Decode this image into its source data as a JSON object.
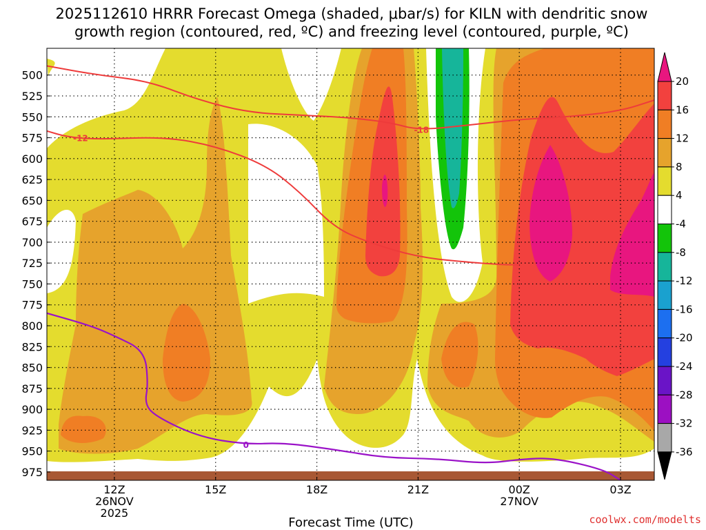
{
  "chart_data": {
    "type": "heatmap",
    "title_line1": "2025112610 HRRR Forecast Omega (shaded, μbar/s) for KILN with dendritic snow",
    "title_line2": "growth region (contoured, red, ºC) and freezing level (contoured, purple, ºC)",
    "xlabel": "Forecast Time (UTC)",
    "credit": "coolwx.com/modelts",
    "y_ticks": [
      500,
      525,
      550,
      575,
      600,
      625,
      650,
      675,
      700,
      725,
      750,
      775,
      800,
      825,
      850,
      875,
      900,
      925,
      950,
      975
    ],
    "y_tick_labels": [
      "500",
      "525",
      "550",
      "575",
      "600",
      "625",
      "650",
      "675",
      "700",
      "725",
      "750",
      "775",
      "800",
      "825",
      "850",
      "875",
      "900",
      "925",
      "950",
      "975"
    ],
    "x_ticks": [
      {
        "hour": 2,
        "line1": "12Z",
        "line2": "26NOV",
        "line3": "2025"
      },
      {
        "hour": 5,
        "line1": "15Z",
        "line2": "",
        "line3": ""
      },
      {
        "hour": 8,
        "line1": "18Z",
        "line2": "",
        "line3": ""
      },
      {
        "hour": 11,
        "line1": "21Z",
        "line2": "",
        "line3": ""
      },
      {
        "hour": 14,
        "line1": "00Z",
        "line2": "27NOV",
        "line3": ""
      },
      {
        "hour": 17,
        "line1": "03Z",
        "line2": "",
        "line3": ""
      }
    ],
    "x_range_hours": [
      0,
      18
    ],
    "y_range_hpa": [
      468,
      985
    ],
    "colorbar": {
      "labels": [
        "20",
        "16",
        "12",
        "8",
        "4",
        "-4",
        "-8",
        "-12",
        "-16",
        "-20",
        "-24",
        "-28",
        "-32",
        "-36"
      ],
      "colors": [
        "#e8167f",
        "#f2413e",
        "#f07e24",
        "#e6a32c",
        "#e4dc2e",
        "#ffffff",
        "#13c40a",
        "#16b59a",
        "#1aa1cf",
        "#1c6ff0",
        "#2440e0",
        "#6a14c7",
        "#9c10c2",
        "#a8a8a8",
        "#000000"
      ]
    },
    "shading_colors": {
      "c4": "#e4dc2e",
      "c8": "#e6a32c",
      "c12": "#f07e24",
      "c16": "#f2413e",
      "c20": "#e8167f",
      "cm4": "#13c40a",
      "cm8": "#16b59a",
      "ground": "#a85834"
    },
    "omega_features": [
      {
        "level": 4,
        "cx": 10.1,
        "cy": 725,
        "rx": 2.1,
        "ry": 260
      },
      {
        "level": 8,
        "cx": 9.9,
        "cy": 740,
        "rx": 1.5,
        "ry": 220
      },
      {
        "level": 12,
        "cx": 9.8,
        "cy": 620,
        "rx": 0.95,
        "ry": 140
      },
      {
        "level": 16,
        "cx": 9.9,
        "cy": 620,
        "rx": 0.45,
        "ry": 90
      },
      {
        "level": 20,
        "cx": 10.0,
        "cy": 620,
        "rx": 0.08,
        "ry": 28
      },
      {
        "level": 16,
        "cx": 3.9,
        "cy": 810,
        "rx": 0.33,
        "ry": 40
      },
      {
        "level": 12,
        "cx": 3.9,
        "cy": 810,
        "rx": 0.65,
        "ry": 70
      },
      {
        "level": -4,
        "cx": 11.8,
        "cy": 560,
        "rx": 0.7,
        "ry": 140
      },
      {
        "level": -8,
        "cx": 11.8,
        "cy": 560,
        "rx": 0.32,
        "ry": 120
      }
    ],
    "dgz_contours": [
      {
        "label": "-12",
        "label_hour": 1.0,
        "label_hpa": 575,
        "x": [
          0,
          0.6,
          1.5,
          3.5,
          5.0,
          6.5,
          7.5,
          8.5,
          9.5,
          11.0,
          12.5,
          13.5,
          14.0
        ],
        "p": [
          567,
          574,
          577,
          574,
          585,
          608,
          640,
          682,
          700,
          718,
          724,
          727,
          727
        ]
      },
      {
        "label": "-18",
        "label_hour": 11.1,
        "label_hpa": 565,
        "x": [
          0,
          1.5,
          3.0,
          4.5,
          6.0,
          7.5,
          9.0,
          10.2,
          11.0,
          12.5,
          14.0,
          15.5,
          17.0,
          18.0
        ],
        "p": [
          489,
          500,
          507,
          530,
          545,
          548,
          551,
          557,
          566,
          560,
          553,
          550,
          543,
          530
        ]
      }
    ],
    "freezing_contours": [
      {
        "label": "0",
        "label_hour": 5.9,
        "label_hpa": 942,
        "x": [
          0,
          1.3,
          2.0,
          2.9,
          3.0,
          2.9,
          3.2,
          4.5,
          5.9,
          7.0,
          8.5,
          10.0,
          11.5,
          13.0,
          14.0,
          15.0,
          16.5,
          17.0
        ],
        "p": [
          785,
          800,
          812,
          830,
          870,
          893,
          908,
          933,
          942,
          940,
          948,
          958,
          959,
          965,
          960,
          958,
          972,
          985
        ]
      }
    ]
  }
}
